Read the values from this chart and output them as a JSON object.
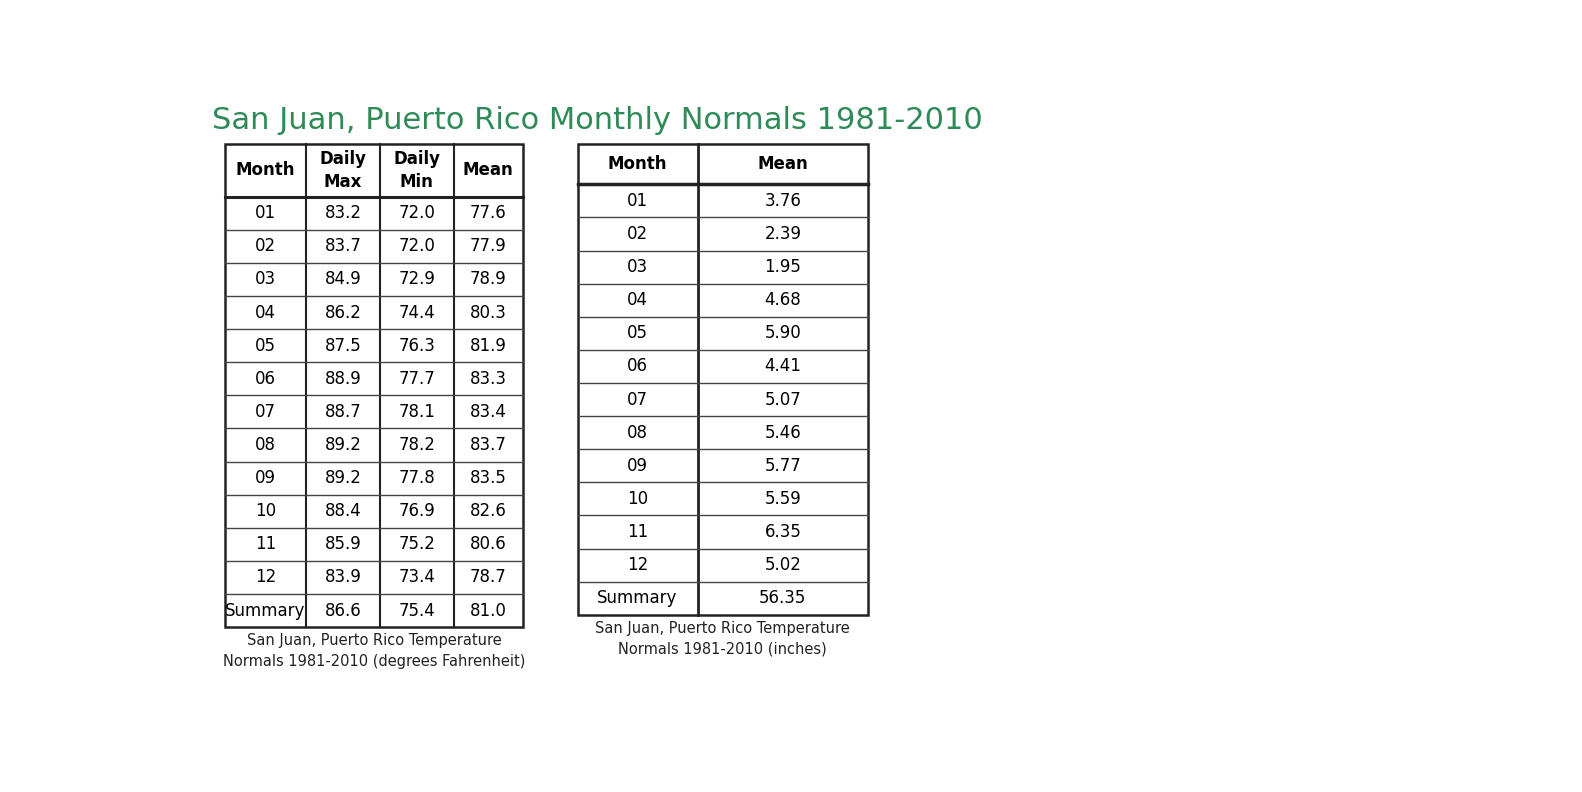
{
  "title": "San Juan, Puerto Rico Monthly Normals 1981-2010",
  "title_color": "#2e8b57",
  "title_fontsize": 22,
  "table1": {
    "headers": [
      "Month",
      "Daily\nMax",
      "Daily\nMin",
      "Mean"
    ],
    "rows": [
      [
        "01",
        "83.2",
        "72.0",
        "77.6"
      ],
      [
        "02",
        "83.7",
        "72.0",
        "77.9"
      ],
      [
        "03",
        "84.9",
        "72.9",
        "78.9"
      ],
      [
        "04",
        "86.2",
        "74.4",
        "80.3"
      ],
      [
        "05",
        "87.5",
        "76.3",
        "81.9"
      ],
      [
        "06",
        "88.9",
        "77.7",
        "83.3"
      ],
      [
        "07",
        "88.7",
        "78.1",
        "83.4"
      ],
      [
        "08",
        "89.2",
        "78.2",
        "83.7"
      ],
      [
        "09",
        "89.2",
        "77.8",
        "83.5"
      ],
      [
        "10",
        "88.4",
        "76.9",
        "82.6"
      ],
      [
        "11",
        "85.9",
        "75.2",
        "80.6"
      ],
      [
        "12",
        "83.9",
        "73.4",
        "78.7"
      ],
      [
        "Summary",
        "86.6",
        "75.4",
        "81.0"
      ]
    ],
    "caption": "San Juan, Puerto Rico Temperature\nNormals 1981-2010 (degrees Fahrenheit)"
  },
  "table2": {
    "headers": [
      "Month",
      "Mean"
    ],
    "rows": [
      [
        "01",
        "3.76"
      ],
      [
        "02",
        "2.39"
      ],
      [
        "03",
        "1.95"
      ],
      [
        "04",
        "4.68"
      ],
      [
        "05",
        "5.90"
      ],
      [
        "06",
        "4.41"
      ],
      [
        "07",
        "5.07"
      ],
      [
        "08",
        "5.46"
      ],
      [
        "09",
        "5.77"
      ],
      [
        "10",
        "5.59"
      ],
      [
        "11",
        "6.35"
      ],
      [
        "12",
        "5.02"
      ],
      [
        "Summary",
        "56.35"
      ]
    ],
    "caption": "San Juan, Puerto Rico Temperature\nNormals 1981-2010 (inches)"
  }
}
